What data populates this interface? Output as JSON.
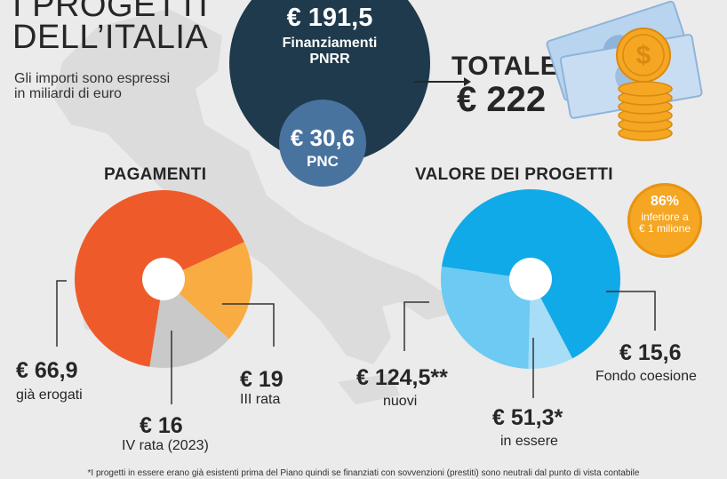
{
  "header": {
    "title_line1": "I PROGETTI",
    "title_line2": "DELL’ITALIA",
    "subtitle_line1": "Gli importi sono espressi",
    "subtitle_line2": "in miliardi di euro"
  },
  "funding": {
    "pnrr_value": "€ 191,5",
    "pnrr_label_line1": "Finanziamenti",
    "pnrr_label_line2": "PNRR",
    "pnc_value": "€ 30,6",
    "pnc_label": "PNC",
    "total_label": "TOTALE",
    "total_value": "€ 222"
  },
  "badge": {
    "value": "86%",
    "label_line1": "inferiore a",
    "label_line2": "€ 1 milione"
  },
  "colors": {
    "pnrr": "#1e3a4c",
    "pnc": "#48739f",
    "badge": "#f5a623"
  },
  "chart_data": [
    {
      "type": "pie",
      "title": "PAGAMENTI",
      "slices": [
        {
          "value": 66.9,
          "value_label": "€ 66,9",
          "label": "già erogati",
          "color": "#ef5a2a"
        },
        {
          "value": 19,
          "value_label": "€ 19",
          "label": "III rata",
          "color": "#f8ac42"
        },
        {
          "value": 16,
          "value_label": "€ 16",
          "label": "IV rata (2023)",
          "color": "#c9c9c9"
        }
      ]
    },
    {
      "type": "pie",
      "title": "VALORE DEI PROGETTI",
      "slices": [
        {
          "value": 124.5,
          "value_label": "€ 124,5**",
          "label": "nuovi",
          "color": "#10aae8"
        },
        {
          "value": 15.6,
          "value_label": "€ 15,6",
          "label": "Fondo coesione",
          "color": "#a7ddf6"
        },
        {
          "value": 51.3,
          "value_label": "€ 51,3*",
          "label": "in essere",
          "color": "#6dcaf2"
        }
      ]
    }
  ],
  "footnote": "*I progetti in essere erano già esistenti prima del Piano quindi se finanziati con sovvenzioni (prestiti) sono neutrali dal punto di vista contabile"
}
